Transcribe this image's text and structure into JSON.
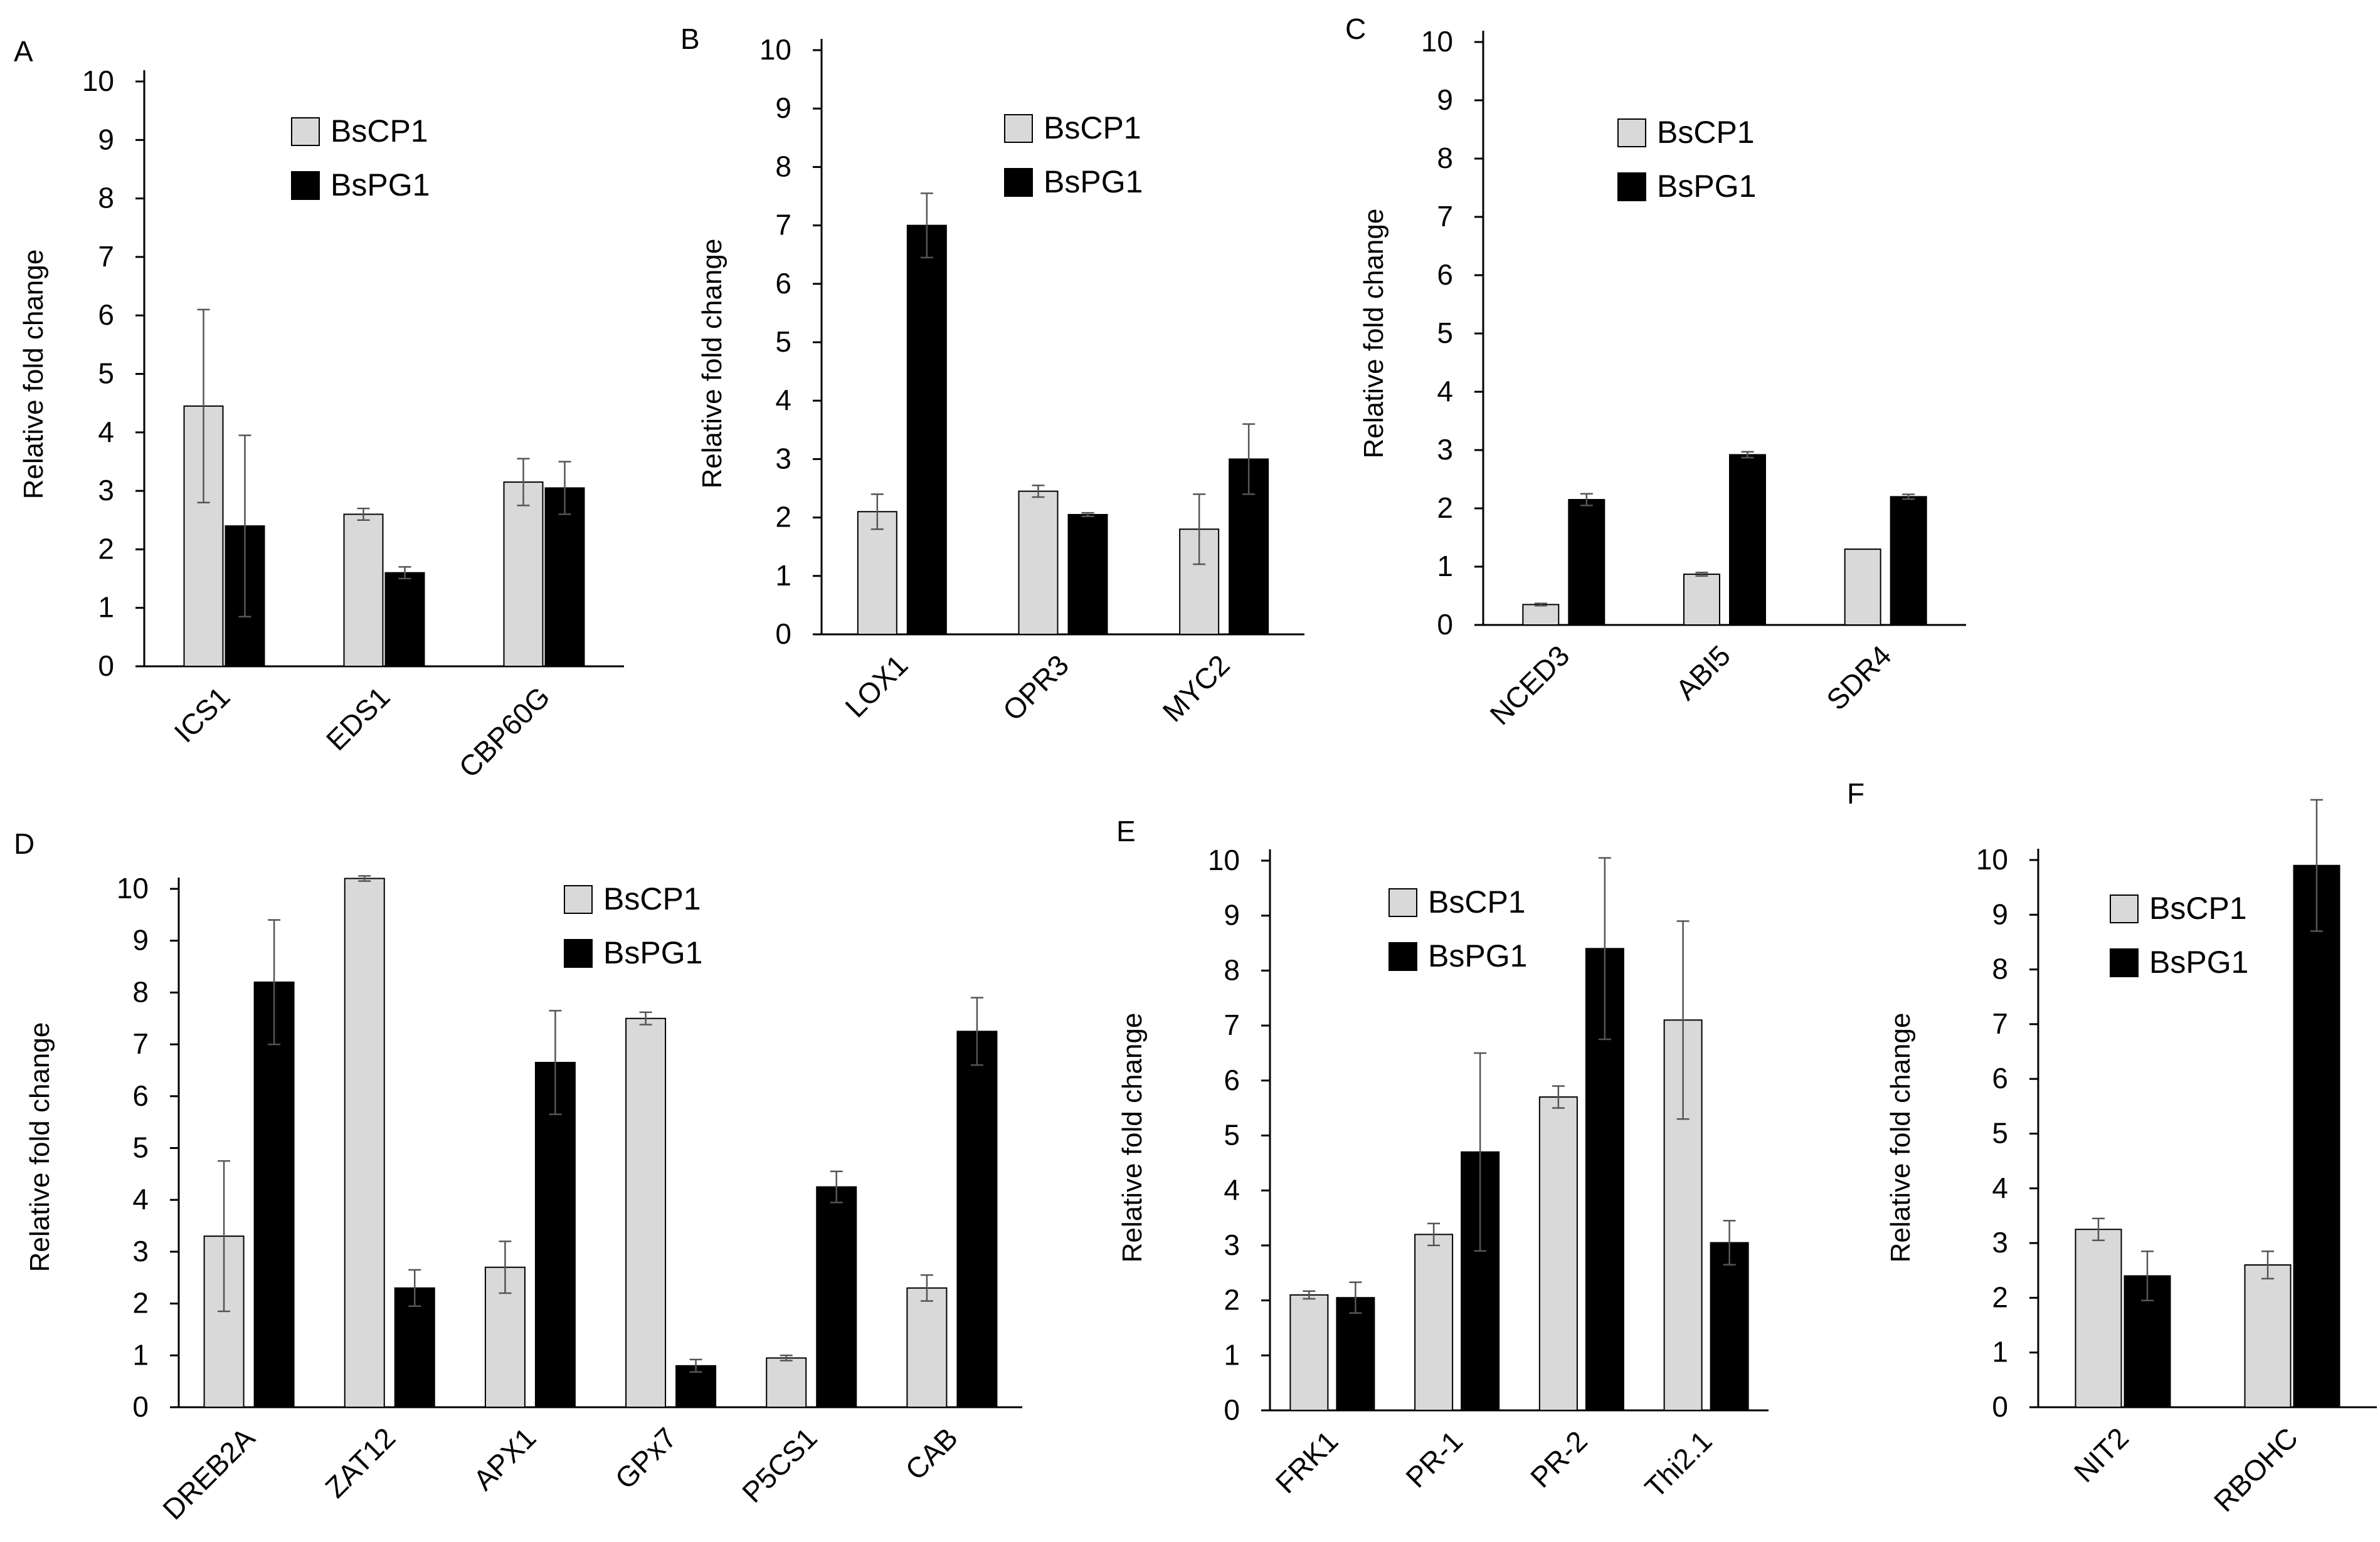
{
  "legend": {
    "light": "BsCP1",
    "dark": "BsPG1"
  },
  "colors": {
    "light": "#d9d9d9",
    "dark": "#000000",
    "axis": "#000000"
  },
  "chart_data": [
    {
      "panel": "A",
      "type": "bar",
      "ylabel": "Relative fold change",
      "ylim": [
        0,
        10
      ],
      "categories": [
        "ICS1",
        "EDS1",
        "CBP60G"
      ],
      "series": [
        {
          "name": "BsCP1",
          "values": [
            4.45,
            2.6,
            3.15
          ],
          "errors": [
            1.65,
            0.1,
            0.4
          ]
        },
        {
          "name": "BsPG1",
          "values": [
            2.4,
            1.6,
            3.05
          ],
          "errors": [
            1.55,
            0.1,
            0.45
          ]
        }
      ]
    },
    {
      "panel": "B",
      "type": "bar",
      "ylabel": "Relative fold change",
      "ylim": [
        0,
        10
      ],
      "categories": [
        "LOX1",
        "OPR3",
        "MYC2"
      ],
      "series": [
        {
          "name": "BsCP1",
          "values": [
            2.1,
            2.45,
            1.8
          ],
          "errors": [
            0.3,
            0.1,
            0.6
          ]
        },
        {
          "name": "BsPG1",
          "values": [
            7.0,
            2.05,
            3.0
          ],
          "errors": [
            0.55,
            0.03,
            0.6
          ]
        }
      ]
    },
    {
      "panel": "C",
      "type": "bar",
      "ylabel": "Relative fold change",
      "ylim": [
        0,
        10
      ],
      "categories": [
        "NCED3",
        "ABI5",
        "SDR4"
      ],
      "series": [
        {
          "name": "BsCP1",
          "values": [
            0.35,
            0.87,
            1.3
          ],
          "errors": [
            0.02,
            0.03,
            0.0
          ]
        },
        {
          "name": "BsPG1",
          "values": [
            2.15,
            2.92,
            2.2
          ],
          "errors": [
            0.1,
            0.05,
            0.04
          ]
        }
      ]
    },
    {
      "panel": "D",
      "type": "bar",
      "ylabel": "Relative fold change",
      "ylim": [
        0,
        10
      ],
      "categories": [
        "DREB2A",
        "ZAT12",
        "APX1",
        "GPx7",
        "P5CS1",
        "CAB"
      ],
      "series": [
        {
          "name": "BsCP1",
          "values": [
            3.3,
            10.2,
            2.7,
            7.5,
            0.95,
            2.3
          ],
          "errors": [
            1.45,
            0.05,
            0.5,
            0.12,
            0.05,
            0.25
          ]
        },
        {
          "name": "BsPG1",
          "values": [
            8.2,
            2.3,
            6.65,
            0.8,
            4.25,
            7.25
          ],
          "errors": [
            1.2,
            0.35,
            1.0,
            0.12,
            0.3,
            0.65
          ]
        }
      ]
    },
    {
      "panel": "E",
      "type": "bar",
      "ylabel": "Relative fold change",
      "ylim": [
        0,
        10
      ],
      "categories": [
        "FRK1",
        "PR-1",
        "PR-2",
        "Thi2.1"
      ],
      "series": [
        {
          "name": "BsCP1",
          "values": [
            2.1,
            3.2,
            5.7,
            7.1
          ],
          "errors": [
            0.07,
            0.2,
            0.2,
            1.8
          ]
        },
        {
          "name": "BsPG1",
          "values": [
            2.05,
            4.7,
            8.4,
            3.05
          ],
          "errors": [
            0.28,
            1.8,
            1.65,
            0.4
          ]
        }
      ]
    },
    {
      "panel": "F",
      "type": "bar",
      "ylabel": "Relative fold change",
      "ylim": [
        0,
        10
      ],
      "categories": [
        "NIT2",
        "RBOHC"
      ],
      "series": [
        {
          "name": "BsCP1",
          "values": [
            3.25,
            2.6
          ],
          "errors": [
            0.2,
            0.25
          ]
        },
        {
          "name": "BsPG1",
          "values": [
            2.4,
            9.9
          ],
          "errors": [
            0.45,
            1.2
          ]
        }
      ]
    }
  ]
}
